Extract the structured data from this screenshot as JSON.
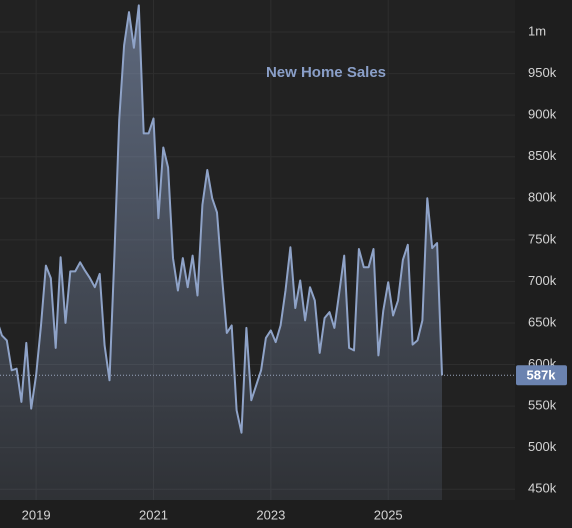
{
  "chart_data": {
    "type": "area",
    "title": "New Home Sales",
    "categories": [
      null,
      null,
      null,
      null,
      null,
      null,
      null,
      null,
      "2019",
      null,
      null,
      null,
      null,
      null,
      null,
      null,
      null,
      null,
      null,
      null,
      null,
      null,
      null,
      null,
      null,
      null,
      null,
      null,
      null,
      null,
      null,
      null,
      "2021",
      null,
      null,
      null,
      null,
      null,
      null,
      null,
      null,
      null,
      null,
      null,
      null,
      null,
      null,
      null,
      null,
      null,
      null,
      null,
      null,
      null,
      null,
      null,
      "2023",
      null,
      null,
      null,
      null,
      null,
      null,
      null,
      null,
      null,
      null,
      null,
      null,
      null,
      null,
      null,
      null,
      null,
      null,
      null,
      null,
      null,
      null,
      null,
      "2025",
      null,
      null,
      null,
      null,
      null,
      null,
      null,
      null,
      null,
      null,
      null
    ],
    "values": [
      653000,
      635000,
      629000,
      593000,
      595000,
      555000,
      626000,
      547000,
      587000,
      647000,
      719000,
      704000,
      620000,
      729000,
      650000,
      712000,
      712000,
      723000,
      713000,
      704000,
      693000,
      709000,
      623000,
      581000,
      731000,
      894000,
      984000,
      1024000,
      981000,
      1032000,
      878000,
      878000,
      896000,
      776000,
      861000,
      837000,
      728000,
      689000,
      728000,
      693000,
      731000,
      683000,
      792000,
      834000,
      800000,
      783000,
      707000,
      638000,
      647000,
      545000,
      518000,
      644000,
      557000,
      575000,
      593000,
      632000,
      641000,
      627000,
      647000,
      689000,
      741000,
      668000,
      701000,
      653000,
      693000,
      677000,
      614000,
      656000,
      663000,
      644000,
      687000,
      731000,
      620000,
      617000,
      739000,
      717000,
      717000,
      739000,
      611000,
      665000,
      699000,
      659000,
      677000,
      726000,
      744000,
      624000,
      629000,
      653000,
      800000,
      740000,
      746000,
      587000
    ],
    "value_labels": [
      null,
      null,
      null,
      null,
      null,
      null,
      null,
      null,
      null,
      null,
      null,
      null,
      null,
      null,
      null,
      null,
      null,
      null,
      null,
      null,
      null,
      null,
      null,
      null,
      null,
      null,
      null,
      null,
      null,
      null,
      null,
      null,
      null,
      null,
      null,
      null,
      null,
      null,
      null,
      null,
      null,
      null,
      null,
      null,
      null,
      null,
      null,
      null,
      null,
      null,
      null,
      null,
      null,
      null,
      null,
      null,
      null,
      null,
      null,
      null,
      null,
      null,
      null,
      null,
      null,
      null,
      null,
      null,
      null,
      null,
      null,
      null,
      null,
      null,
      null,
      null,
      null,
      null,
      null,
      null,
      null,
      null,
      null,
      null,
      null,
      null,
      null,
      null,
      null,
      null,
      null,
      "587k"
    ],
    "color": "#8fa3c8",
    "ylim": [
      437000,
      1038500
    ],
    "yticks": [
      {
        "value": 450000,
        "label": "450k"
      },
      {
        "value": 500000,
        "label": "500k"
      },
      {
        "value": 550000,
        "label": "550k"
      },
      {
        "value": 600000,
        "label": "600k"
      },
      {
        "value": 650000,
        "label": "650k"
      },
      {
        "value": 700000,
        "label": "700k"
      },
      {
        "value": 750000,
        "label": "750k"
      },
      {
        "value": 800000,
        "label": "800k"
      },
      {
        "value": 850000,
        "label": "850k"
      },
      {
        "value": 900000,
        "label": "900k"
      },
      {
        "value": 950000,
        "label": "950k"
      },
      {
        "value": 1000000,
        "label": "1m"
      }
    ],
    "grid": true
  }
}
